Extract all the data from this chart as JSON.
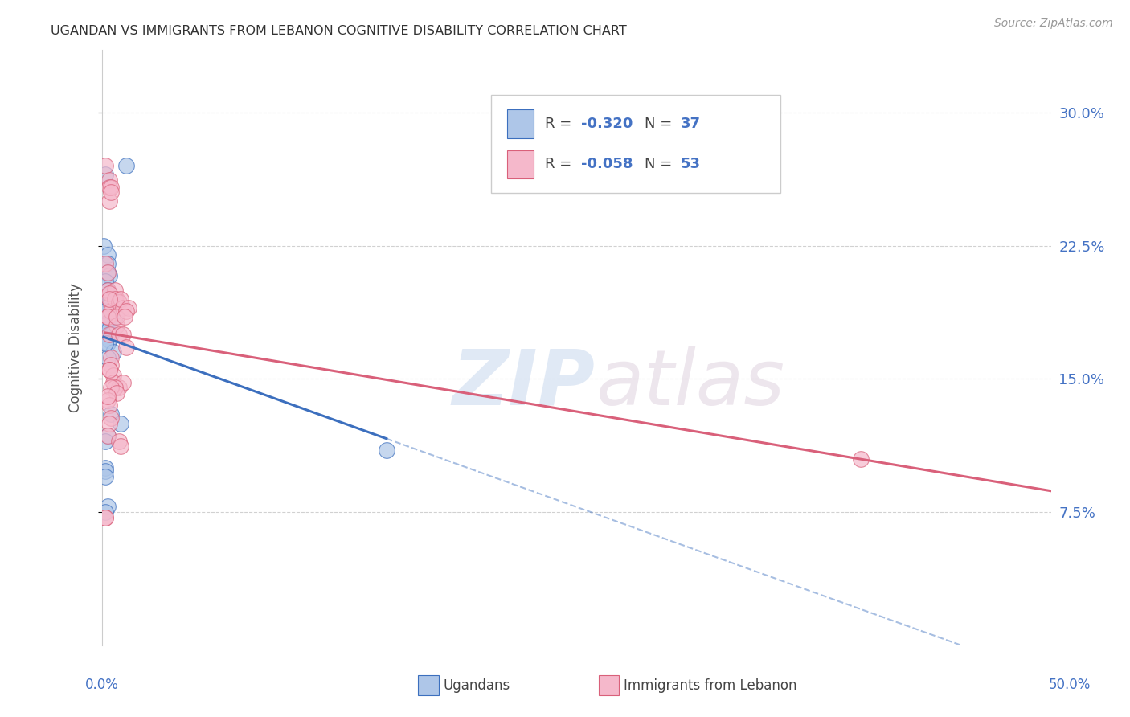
{
  "title": "UGANDAN VS IMMIGRANTS FROM LEBANON COGNITIVE DISABILITY CORRELATION CHART",
  "source": "Source: ZipAtlas.com",
  "ylabel": "Cognitive Disability",
  "yticks": [
    "7.5%",
    "15.0%",
    "22.5%",
    "30.0%"
  ],
  "ytick_values": [
    0.075,
    0.15,
    0.225,
    0.3
  ],
  "xlim": [
    0.0,
    0.5
  ],
  "ylim": [
    0.0,
    0.335
  ],
  "ugandan_color": "#aec6e8",
  "lebanon_color": "#f5b8cb",
  "ugandan_line_color": "#3c6fbe",
  "lebanon_line_color": "#d9607a",
  "legend_ugandan": "Ugandans",
  "legend_lebanon": "Immigrants from Lebanon",
  "R_ugandan": -0.32,
  "N_ugandan": 37,
  "R_lebanon": -0.058,
  "N_lebanon": 53,
  "watermark": "ZIP",
  "watermark2": "atlas",
  "ugandan_x": [
    0.002,
    0.013,
    0.001,
    0.003,
    0.003,
    0.003,
    0.004,
    0.002,
    0.003,
    0.003,
    0.004,
    0.004,
    0.003,
    0.002,
    0.004,
    0.003,
    0.005,
    0.003,
    0.002,
    0.004,
    0.007,
    0.005,
    0.004,
    0.003,
    0.006,
    0.003,
    0.005,
    0.01,
    0.003,
    0.002,
    0.002,
    0.002,
    0.002,
    0.003,
    0.15,
    0.002,
    0.002
  ],
  "ugandan_y": [
    0.265,
    0.27,
    0.225,
    0.22,
    0.215,
    0.21,
    0.208,
    0.205,
    0.2,
    0.197,
    0.195,
    0.193,
    0.19,
    0.188,
    0.186,
    0.184,
    0.195,
    0.182,
    0.18,
    0.178,
    0.185,
    0.175,
    0.172,
    0.17,
    0.165,
    0.162,
    0.13,
    0.125,
    0.118,
    0.115,
    0.1,
    0.098,
    0.095,
    0.078,
    0.11,
    0.17,
    0.075
  ],
  "lebanon_x": [
    0.002,
    0.003,
    0.004,
    0.003,
    0.008,
    0.006,
    0.003,
    0.005,
    0.005,
    0.007,
    0.004,
    0.007,
    0.009,
    0.011,
    0.003,
    0.008,
    0.01,
    0.008,
    0.004,
    0.004,
    0.014,
    0.013,
    0.012,
    0.009,
    0.011,
    0.005,
    0.005,
    0.004,
    0.006,
    0.006,
    0.004,
    0.009,
    0.011,
    0.007,
    0.005,
    0.008,
    0.013,
    0.003,
    0.004,
    0.005,
    0.004,
    0.003,
    0.009,
    0.01,
    0.4,
    0.002,
    0.003,
    0.002,
    0.004,
    0.004,
    0.005,
    0.005,
    0.002
  ],
  "lebanon_y": [
    0.215,
    0.21,
    0.25,
    0.2,
    0.195,
    0.19,
    0.185,
    0.192,
    0.188,
    0.2,
    0.198,
    0.195,
    0.193,
    0.19,
    0.185,
    0.18,
    0.195,
    0.185,
    0.175,
    0.195,
    0.19,
    0.188,
    0.185,
    0.175,
    0.175,
    0.162,
    0.158,
    0.155,
    0.152,
    0.148,
    0.155,
    0.145,
    0.148,
    0.145,
    0.145,
    0.142,
    0.168,
    0.138,
    0.135,
    0.128,
    0.125,
    0.118,
    0.115,
    0.112,
    0.105,
    0.072,
    0.14,
    0.27,
    0.262,
    0.258,
    0.258,
    0.255,
    0.072
  ]
}
